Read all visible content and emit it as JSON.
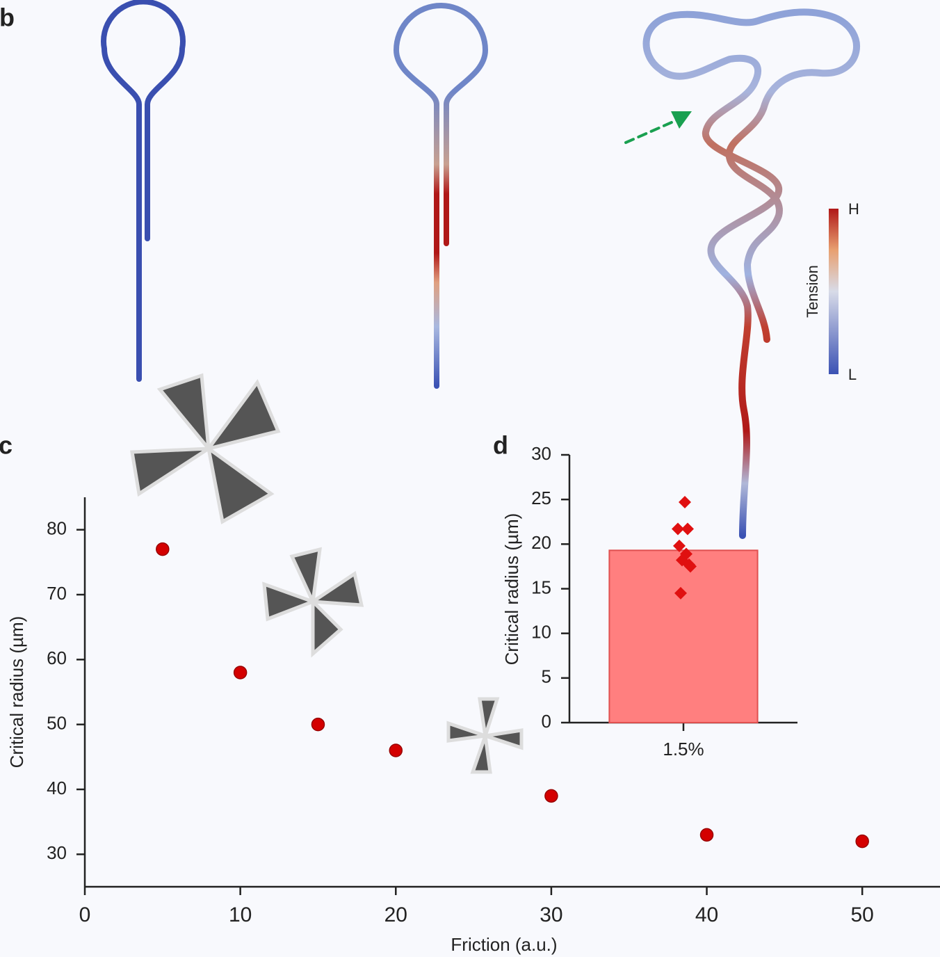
{
  "panel_labels": [
    "b",
    "c",
    "d"
  ],
  "colorbar": {
    "label": "Tension",
    "high": "H",
    "low": "L"
  },
  "chart_data": [
    {
      "type": "scatter",
      "x_label": "Friction (a.u.)",
      "y_label": "Critical radius (µm)",
      "x": [
        5,
        10,
        15,
        20,
        30,
        40,
        50
      ],
      "values": [
        77,
        58,
        50,
        46,
        39,
        33,
        32
      ],
      "color": "#d40000",
      "xlim": [
        0,
        55
      ],
      "ylim": [
        25,
        85
      ],
      "xticks": [
        0,
        10,
        20,
        30,
        40,
        50
      ],
      "yticks": [
        30,
        40,
        50,
        60,
        70,
        80
      ]
    },
    {
      "type": "bar",
      "y_label": "Critical radius (µm)",
      "categories": [
        "1.5%"
      ],
      "values": [
        19.3
      ],
      "color": "#ff7f7f",
      "points": {
        "color": "#e01010",
        "values": [
          24.7,
          21.7,
          21.7,
          19.8,
          18.9,
          18.2,
          17.7,
          17.5,
          14.5
        ]
      },
      "ylim": [
        0,
        30
      ],
      "yticks": [
        0,
        5,
        10,
        15,
        20,
        25,
        30
      ]
    }
  ]
}
